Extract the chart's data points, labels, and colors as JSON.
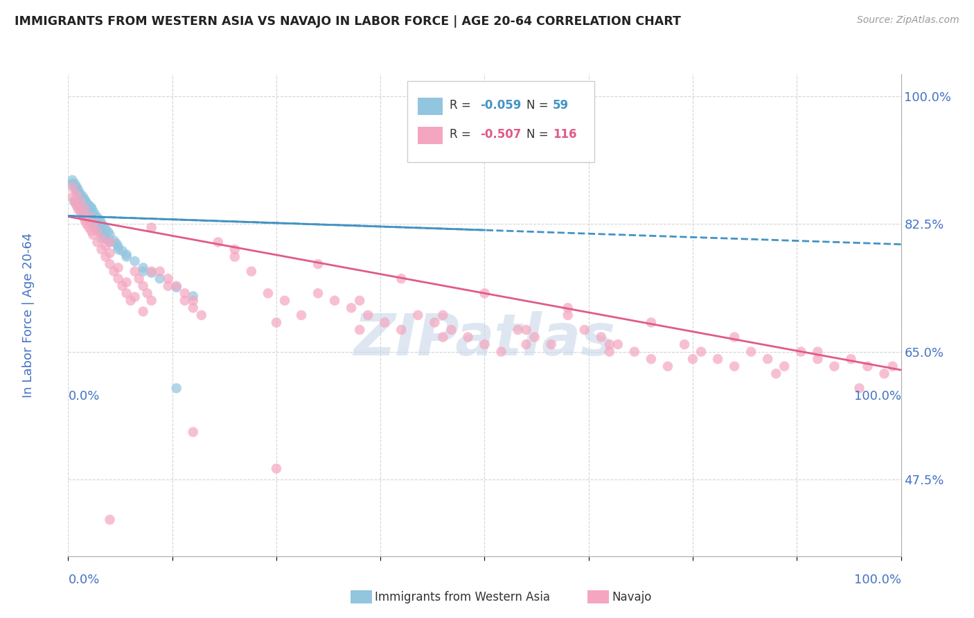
{
  "title": "IMMIGRANTS FROM WESTERN ASIA VS NAVAJO IN LABOR FORCE | AGE 20-64 CORRELATION CHART",
  "source": "Source: ZipAtlas.com",
  "ylabel": "In Labor Force | Age 20-64",
  "legend_blue_R": "-0.059",
  "legend_blue_N": "59",
  "legend_pink_R": "-0.507",
  "legend_pink_N": "116",
  "watermark": "ZIPatlas",
  "y_ticks": [
    0.475,
    0.65,
    0.825,
    1.0
  ],
  "y_tick_labels": [
    "47.5%",
    "65.0%",
    "82.5%",
    "100.0%"
  ],
  "blue_scatter_color": "#92c5de",
  "pink_scatter_color": "#f4a6c0",
  "blue_line_color": "#4393c3",
  "pink_line_color": "#e05a8a",
  "xlim": [
    0.0,
    1.0
  ],
  "ylim": [
    0.37,
    1.03
  ],
  "blue_line_y": [
    0.836,
    0.797
  ],
  "pink_line_y": [
    0.835,
    0.625
  ],
  "background_color": "#ffffff",
  "grid_color": "#d0d0d0",
  "title_color": "#222222",
  "axis_label_color": "#4472c4",
  "tick_color": "#4472c4",
  "watermark_color": "#c8d8e8",
  "blue_x": [
    0.005,
    0.008,
    0.01,
    0.012,
    0.015,
    0.018,
    0.02,
    0.022,
    0.025,
    0.028,
    0.005,
    0.008,
    0.01,
    0.012,
    0.015,
    0.018,
    0.02,
    0.022,
    0.025,
    0.028,
    0.03,
    0.032,
    0.035,
    0.038,
    0.04,
    0.042,
    0.045,
    0.048,
    0.05,
    0.055,
    0.058,
    0.06,
    0.065,
    0.07,
    0.08,
    0.09,
    0.1,
    0.11,
    0.13,
    0.15,
    0.007,
    0.01,
    0.013,
    0.016,
    0.019,
    0.022,
    0.025,
    0.028,
    0.031,
    0.034,
    0.037,
    0.04,
    0.043,
    0.046,
    0.05,
    0.06,
    0.07,
    0.09,
    0.13
  ],
  "blue_y": [
    0.88,
    0.875,
    0.872,
    0.868,
    0.862,
    0.858,
    0.856,
    0.853,
    0.85,
    0.847,
    0.885,
    0.88,
    0.876,
    0.872,
    0.866,
    0.862,
    0.858,
    0.854,
    0.85,
    0.846,
    0.842,
    0.838,
    0.834,
    0.83,
    0.826,
    0.822,
    0.818,
    0.814,
    0.81,
    0.802,
    0.798,
    0.794,
    0.788,
    0.783,
    0.774,
    0.765,
    0.758,
    0.75,
    0.738,
    0.726,
    0.856,
    0.852,
    0.848,
    0.844,
    0.84,
    0.836,
    0.832,
    0.828,
    0.824,
    0.82,
    0.816,
    0.812,
    0.808,
    0.804,
    0.8,
    0.79,
    0.78,
    0.76,
    0.6
  ],
  "pink_x": [
    0.005,
    0.008,
    0.01,
    0.012,
    0.015,
    0.018,
    0.02,
    0.022,
    0.025,
    0.028,
    0.03,
    0.035,
    0.04,
    0.045,
    0.05,
    0.055,
    0.06,
    0.065,
    0.07,
    0.075,
    0.08,
    0.085,
    0.09,
    0.095,
    0.1,
    0.11,
    0.12,
    0.13,
    0.14,
    0.15,
    0.005,
    0.01,
    0.015,
    0.02,
    0.025,
    0.03,
    0.035,
    0.04,
    0.045,
    0.05,
    0.06,
    0.07,
    0.08,
    0.09,
    0.1,
    0.12,
    0.14,
    0.16,
    0.18,
    0.2,
    0.22,
    0.24,
    0.26,
    0.28,
    0.3,
    0.32,
    0.34,
    0.36,
    0.38,
    0.4,
    0.42,
    0.44,
    0.46,
    0.48,
    0.5,
    0.52,
    0.54,
    0.56,
    0.58,
    0.6,
    0.62,
    0.64,
    0.66,
    0.68,
    0.7,
    0.72,
    0.74,
    0.76,
    0.78,
    0.8,
    0.82,
    0.84,
    0.86,
    0.88,
    0.9,
    0.92,
    0.94,
    0.96,
    0.98,
    0.99,
    0.15,
    0.25,
    0.35,
    0.45,
    0.55,
    0.65,
    0.05,
    0.1,
    0.2,
    0.3,
    0.4,
    0.5,
    0.6,
    0.7,
    0.8,
    0.9,
    0.35,
    0.45,
    0.55,
    0.65,
    0.75,
    0.85,
    0.95,
    0.25,
    0.15,
    0.05
  ],
  "pink_y": [
    0.862,
    0.855,
    0.85,
    0.845,
    0.84,
    0.835,
    0.83,
    0.825,
    0.82,
    0.815,
    0.81,
    0.8,
    0.79,
    0.78,
    0.77,
    0.76,
    0.75,
    0.74,
    0.73,
    0.72,
    0.76,
    0.75,
    0.74,
    0.73,
    0.72,
    0.76,
    0.75,
    0.74,
    0.73,
    0.72,
    0.875,
    0.865,
    0.855,
    0.845,
    0.835,
    0.825,
    0.815,
    0.805,
    0.795,
    0.785,
    0.765,
    0.745,
    0.725,
    0.705,
    0.76,
    0.74,
    0.72,
    0.7,
    0.8,
    0.78,
    0.76,
    0.73,
    0.72,
    0.7,
    0.73,
    0.72,
    0.71,
    0.7,
    0.69,
    0.68,
    0.7,
    0.69,
    0.68,
    0.67,
    0.66,
    0.65,
    0.68,
    0.67,
    0.66,
    0.7,
    0.68,
    0.67,
    0.66,
    0.65,
    0.64,
    0.63,
    0.66,
    0.65,
    0.64,
    0.63,
    0.65,
    0.64,
    0.63,
    0.65,
    0.64,
    0.63,
    0.64,
    0.63,
    0.62,
    0.63,
    0.71,
    0.69,
    0.68,
    0.67,
    0.66,
    0.65,
    0.8,
    0.82,
    0.79,
    0.77,
    0.75,
    0.73,
    0.71,
    0.69,
    0.67,
    0.65,
    0.72,
    0.7,
    0.68,
    0.66,
    0.64,
    0.62,
    0.6,
    0.49,
    0.54,
    0.42
  ]
}
